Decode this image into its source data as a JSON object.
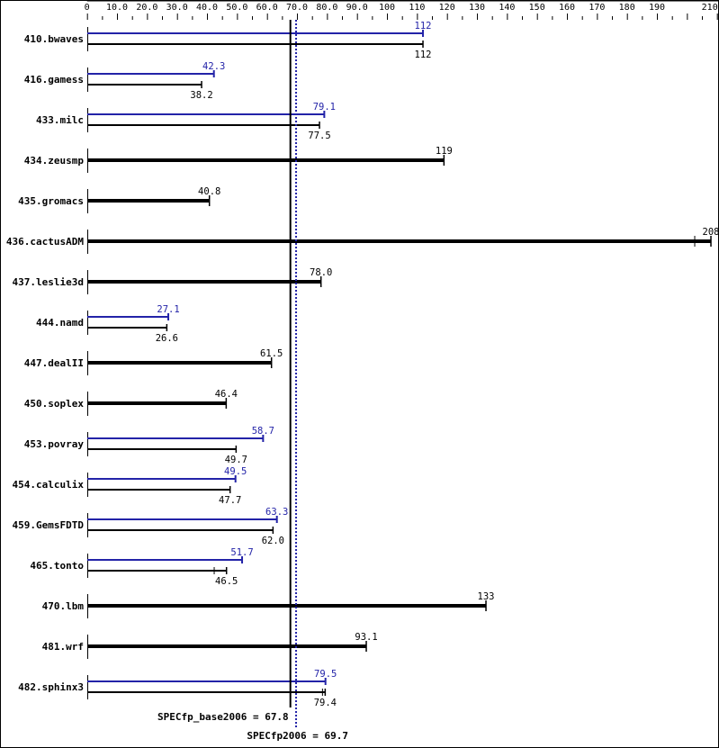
{
  "chart_data": {
    "type": "bar",
    "orientation": "horizontal",
    "xlim": [
      0,
      210
    ],
    "x_tick_labels": [
      "0",
      "10.0",
      "20.0",
      "30.0",
      "40.0",
      "50.0",
      "60.0",
      "70.0",
      "80.0",
      "90.0",
      "100",
      "110",
      "120",
      "130",
      "140",
      "150",
      "160",
      "170",
      "180",
      "190",
      "210"
    ],
    "x_tick_values": [
      0,
      10,
      20,
      30,
      40,
      50,
      60,
      70,
      80,
      90,
      100,
      110,
      120,
      130,
      140,
      150,
      160,
      170,
      180,
      190,
      210
    ],
    "colors": {
      "peak": "#2323a8",
      "base": "#000000"
    },
    "categories": [
      "410.bwaves",
      "416.gamess",
      "433.milc",
      "434.zeusmp",
      "435.gromacs",
      "436.cactusADM",
      "437.leslie3d",
      "444.namd",
      "447.dealII",
      "450.soplex",
      "453.povray",
      "454.calculix",
      "459.GemsFDTD",
      "465.tonto",
      "470.lbm",
      "481.wrf",
      "482.sphinx3"
    ],
    "series": [
      {
        "key": "peak",
        "values": [
          112,
          42.3,
          79.1,
          null,
          null,
          null,
          null,
          27.1,
          null,
          null,
          58.7,
          49.5,
          63.3,
          51.7,
          null,
          null,
          79.5
        ],
        "labels": [
          "112",
          "42.3",
          "79.1",
          null,
          null,
          null,
          null,
          "27.1",
          null,
          null,
          "58.7",
          "49.5",
          "63.3",
          "51.7",
          null,
          null,
          "79.5"
        ]
      },
      {
        "key": "base",
        "values": [
          112,
          38.2,
          77.5,
          119,
          40.8,
          208,
          78.0,
          26.6,
          61.5,
          46.4,
          49.7,
          47.7,
          62.0,
          46.5,
          133,
          93.1,
          79.4
        ],
        "labels": [
          "112",
          "38.2",
          "77.5",
          "119",
          "40.8",
          "208",
          "78.0",
          "26.6",
          "61.5",
          "46.4",
          "49.7",
          "47.7",
          "62.0",
          "46.5",
          "133",
          "93.1",
          "79.4"
        ],
        "min_marks": [
          null,
          null,
          null,
          null,
          null,
          202.6,
          null,
          null,
          null,
          null,
          null,
          null,
          null,
          42.4,
          null,
          null,
          78.5
        ]
      }
    ],
    "reference_lines": [
      {
        "key": "base",
        "value": 67.8,
        "label": "SPECfp_base2006 = 67.8"
      },
      {
        "key": "peak",
        "value": 69.7,
        "label": "SPECfp2006 = 69.7"
      }
    ]
  }
}
